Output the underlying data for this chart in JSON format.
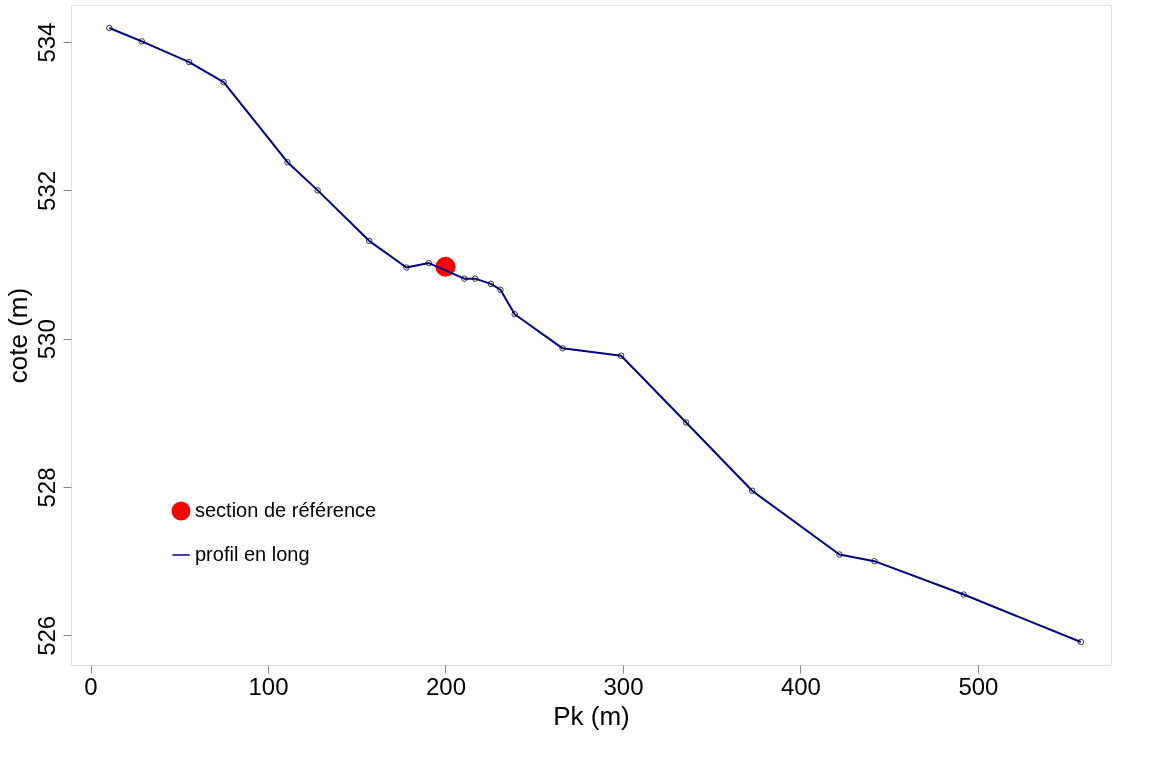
{
  "chart_data": {
    "type": "line",
    "xlabel": "Pk (m)",
    "ylabel": "cote (m)",
    "xlim": [
      -11,
      575
    ],
    "ylim": [
      525.6,
      534.5
    ],
    "xticks": [
      0,
      100,
      200,
      300,
      400,
      500
    ],
    "yticks": [
      526,
      528,
      530,
      532,
      534
    ],
    "grid": false,
    "legend": "bottom left",
    "marker": "circle",
    "line_style": "solid",
    "series": [
      {
        "name": "section de référence",
        "type": "scatter",
        "color": "#ff0000",
        "x": [
          200
        ],
        "values": [
          530.97
        ]
      },
      {
        "name": "profil en long",
        "type": "line",
        "color": "#00008b",
        "x": [
          10.6,
          28.9,
          55.6,
          75,
          111,
          128,
          157,
          178,
          190.6,
          210.6,
          216.7,
          225.6,
          231,
          239,
          266,
          299,
          335.6,
          372.8,
          422,
          441.7,
          492,
          558
        ],
        "values": [
          534.19,
          534.01,
          533.73,
          533.46,
          532.38,
          532.0,
          531.32,
          530.96,
          531.02,
          530.81,
          530.81,
          530.74,
          530.66,
          530.33,
          529.87,
          529.77,
          528.87,
          527.95,
          527.09,
          527.0,
          526.55,
          525.91
        ]
      }
    ]
  }
}
